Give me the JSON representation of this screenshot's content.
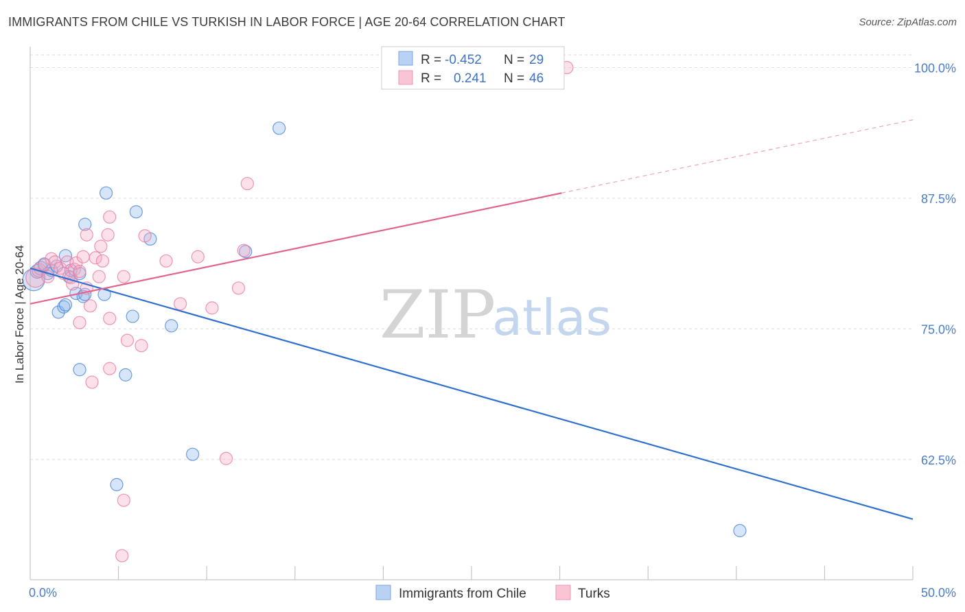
{
  "title": "IMMIGRANTS FROM CHILE VS TURKISH IN LABOR FORCE | AGE 20-64 CORRELATION CHART",
  "source": "Source: ZipAtlas.com",
  "colors": {
    "blue": "#4a86d8",
    "blue_fill": "rgba(140,180,235,0.35)",
    "blue_line": "#2f6fce",
    "pink": "#e87aa0",
    "pink_fill": "rgba(245,170,195,0.35)",
    "pink_line": "#e0648f",
    "grid": "#dddddd",
    "tick_label": "#4a7cc9"
  },
  "chart_data": {
    "type": "scatter",
    "title": "IMMIGRANTS FROM CHILE VS TURKISH IN LABOR FORCE | AGE 20-64 CORRELATION CHART",
    "xlabel": "",
    "ylabel": "In Labor Force | Age 20-64",
    "xlim": [
      0,
      50
    ],
    "ylim": [
      51,
      102
    ],
    "x_tick_labels": [
      {
        "value": 0,
        "label": "0.0%"
      },
      {
        "value": 50,
        "label": "50.0%"
      }
    ],
    "y_ticks": [
      {
        "value": 62.5,
        "label": "62.5%"
      },
      {
        "value": 75.0,
        "label": "75.0%"
      },
      {
        "value": 87.5,
        "label": "87.5%"
      },
      {
        "value": 100.0,
        "label": "100.0%"
      }
    ],
    "legend": {
      "position": "top-center",
      "entries": [
        {
          "swatch": "blue",
          "r_label": "R =",
          "r_value": "-0.452",
          "n_label": "N =",
          "n_value": "29"
        },
        {
          "swatch": "pink",
          "r_label": "R =",
          "r_value": "0.241",
          "n_label": "N =",
          "n_value": "46"
        }
      ]
    },
    "bottom_legend": [
      "Immigrants from Chile",
      "Turks"
    ],
    "series": [
      {
        "name": "Immigrants from Chile",
        "color": "blue",
        "trend": {
          "x0": 0,
          "y0": 80.8,
          "x1": 50,
          "y1": 56.8,
          "solid_until": 50
        },
        "points": [
          [
            0.2,
            79.7,
            16
          ],
          [
            0.4,
            80.5,
            10
          ],
          [
            0.6,
            80.8,
            10
          ],
          [
            0.8,
            81.2,
            9
          ],
          [
            1.0,
            80.3,
            9
          ],
          [
            1.2,
            80.6,
            9
          ],
          [
            1.5,
            81.0,
            9
          ],
          [
            2.0,
            82.0,
            9
          ],
          [
            2.2,
            80.0,
            9
          ],
          [
            2.3,
            80.6,
            9
          ],
          [
            1.6,
            76.6,
            9
          ],
          [
            1.9,
            77.1,
            9
          ],
          [
            2.0,
            77.3,
            9
          ],
          [
            2.6,
            78.4,
            9
          ],
          [
            2.8,
            80.3,
            9
          ],
          [
            3.0,
            78.1,
            9
          ],
          [
            3.1,
            78.3,
            9
          ],
          [
            4.2,
            78.3,
            9
          ],
          [
            3.1,
            85.0,
            9
          ],
          [
            4.3,
            88.0,
            9
          ],
          [
            6.0,
            86.2,
            9
          ],
          [
            6.8,
            83.6,
            9
          ],
          [
            5.8,
            76.2,
            9
          ],
          [
            8.0,
            75.3,
            9
          ],
          [
            5.4,
            70.6,
            9
          ],
          [
            2.8,
            71.1,
            9
          ],
          [
            9.2,
            63.0,
            9
          ],
          [
            4.9,
            60.1,
            9
          ],
          [
            14.1,
            94.2,
            9
          ],
          [
            12.2,
            82.4,
            9
          ],
          [
            40.2,
            55.7,
            9
          ]
        ]
      },
      {
        "name": "Turks",
        "color": "pink",
        "trend": {
          "x0": 0,
          "y0": 77.4,
          "x1": 50,
          "y1": 95.0,
          "solid_until": 30.1
        },
        "points": [
          [
            0.3,
            79.9,
            14
          ],
          [
            0.5,
            80.6,
            10
          ],
          [
            0.8,
            81.1,
            9
          ],
          [
            1.0,
            80.0,
            9
          ],
          [
            1.2,
            81.7,
            9
          ],
          [
            1.4,
            81.4,
            9
          ],
          [
            1.7,
            80.8,
            9
          ],
          [
            1.9,
            80.3,
            9
          ],
          [
            2.1,
            81.4,
            9
          ],
          [
            2.3,
            79.9,
            9
          ],
          [
            2.4,
            79.3,
            9
          ],
          [
            2.5,
            80.7,
            9
          ],
          [
            2.6,
            81.3,
            9
          ],
          [
            2.8,
            80.5,
            9
          ],
          [
            3.0,
            81.9,
            9
          ],
          [
            3.2,
            78.9,
            9
          ],
          [
            3.4,
            77.2,
            9
          ],
          [
            3.2,
            84.0,
            9
          ],
          [
            3.7,
            81.8,
            9
          ],
          [
            3.9,
            80.0,
            9
          ],
          [
            4.0,
            82.9,
            9
          ],
          [
            4.1,
            81.5,
            9
          ],
          [
            4.4,
            84.0,
            9
          ],
          [
            4.5,
            85.7,
            9
          ],
          [
            5.3,
            80.0,
            9
          ],
          [
            4.5,
            71.2,
            9
          ],
          [
            3.5,
            69.9,
            9
          ],
          [
            2.8,
            75.6,
            9
          ],
          [
            4.5,
            76.0,
            9
          ],
          [
            5.5,
            73.9,
            9
          ],
          [
            6.3,
            73.4,
            9
          ],
          [
            6.5,
            83.9,
            9
          ],
          [
            7.7,
            81.5,
            9
          ],
          [
            8.5,
            77.4,
            9
          ],
          [
            9.5,
            81.9,
            9
          ],
          [
            10.3,
            77.0,
            9
          ],
          [
            12.1,
            82.5,
            9
          ],
          [
            11.8,
            78.9,
            9
          ],
          [
            12.3,
            88.9,
            9
          ],
          [
            11.1,
            62.6,
            9
          ],
          [
            5.3,
            58.6,
            9
          ],
          [
            5.2,
            53.3,
            9
          ],
          [
            30.4,
            100.0,
            9
          ]
        ]
      }
    ]
  }
}
